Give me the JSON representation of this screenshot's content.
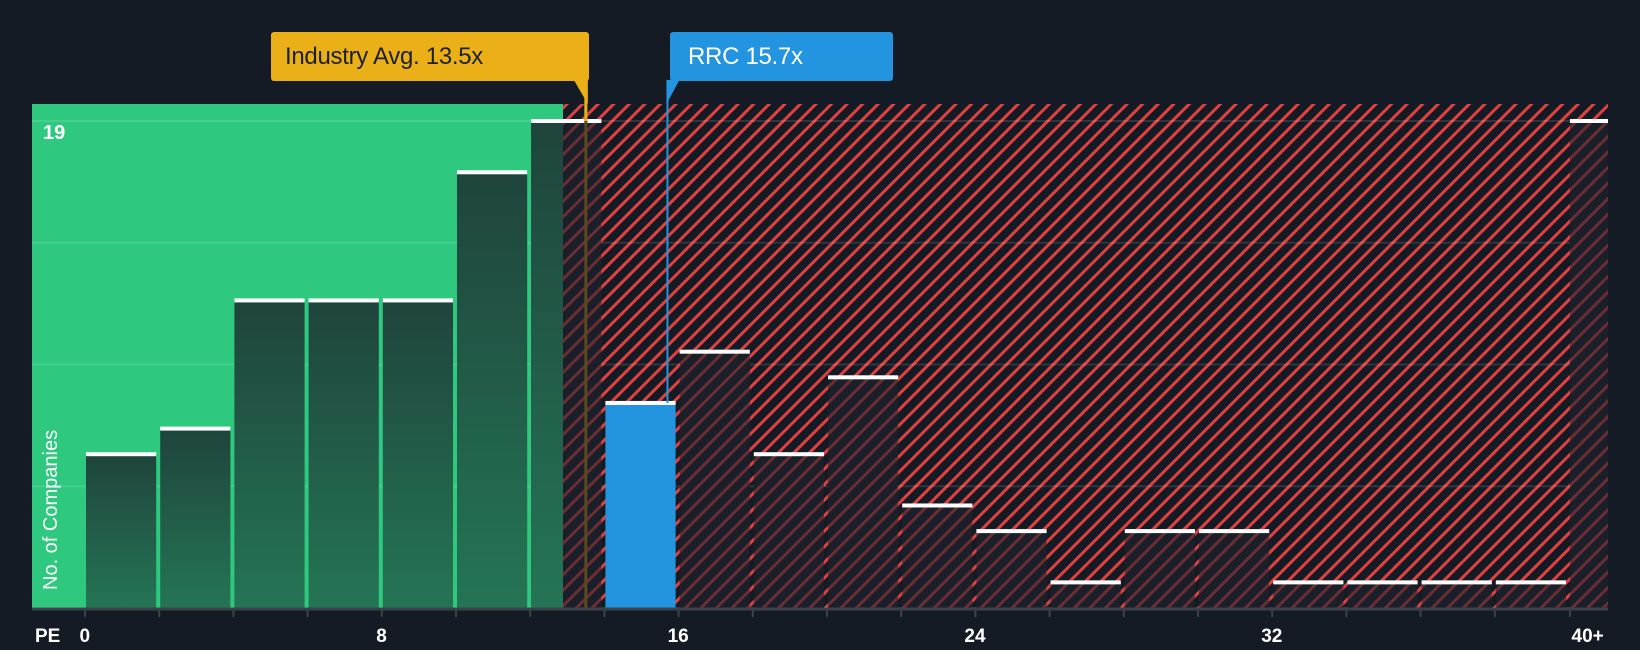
{
  "chart_data": {
    "type": "bar",
    "title": "",
    "xlabel": "PE",
    "ylabel": "No. of Companies",
    "x_ticks": [
      "0",
      "8",
      "16",
      "24",
      "32",
      "40+"
    ],
    "y_ticks": [
      "19"
    ],
    "ylim": [
      0,
      19
    ],
    "bin_width": 2,
    "categories": [
      "0-2",
      "2-4",
      "4-6",
      "6-8",
      "8-10",
      "10-12",
      "12-14",
      "14-16",
      "16-18",
      "18-20",
      "20-22",
      "22-24",
      "24-26",
      "26-28",
      "28-30",
      "30-32",
      "32-34",
      "34-36",
      "36-38",
      "38-40",
      "40+"
    ],
    "values": [
      6,
      7,
      12,
      12,
      12,
      17,
      19,
      8,
      10,
      6,
      9,
      4,
      3,
      1,
      3,
      3,
      1,
      1,
      1,
      1,
      19
    ],
    "highlight_bin": "14-16",
    "annotations": [
      {
        "label": "Industry Avg. 13.5x",
        "x": 13.5,
        "color": "#ebb018"
      },
      {
        "label": "RRC 15.7x",
        "x": 15.7,
        "color": "#2394e0"
      }
    ],
    "regions": [
      {
        "from": 0,
        "to": 13.5,
        "style": "green-fill",
        "color": "#2ec97f"
      },
      {
        "from": 13.5,
        "to": "40+",
        "style": "red-hatch",
        "color": "#e0403f"
      }
    ],
    "grid": true,
    "legend": null
  },
  "callouts": {
    "industry": "Industry Avg. 13.5x",
    "company": "RRC 15.7x"
  },
  "axis": {
    "x_title": "PE",
    "y_title": "No. of Companies",
    "y_max_label": "19"
  },
  "colors": {
    "background": "#151b24",
    "green_region": "#2ec97f",
    "bar_dark": "#1f443c",
    "hatch_red": "#e0403f",
    "company_bar": "#2394e0",
    "industry_marker": "#ebb018",
    "bar_cap": "#ffffff"
  }
}
